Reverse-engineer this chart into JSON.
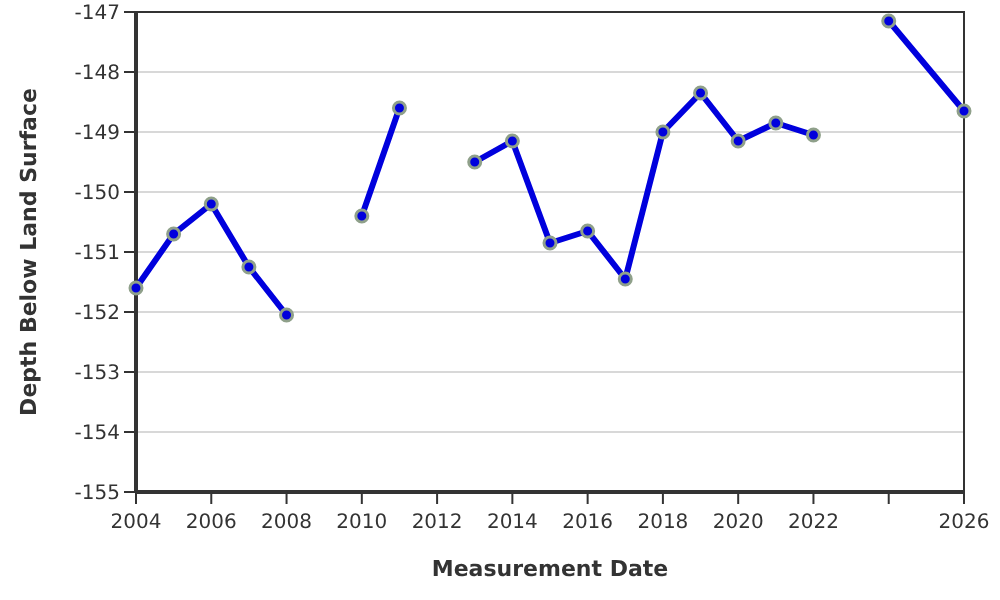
{
  "chart_data": {
    "type": "line",
    "xlabel": "Measurement Date",
    "ylabel": "Depth Below Land Surface",
    "x": [
      2004,
      2005,
      2006,
      2007,
      2008,
      2009,
      2010,
      2011,
      2012,
      2013,
      2014,
      2015,
      2016,
      2017,
      2018,
      2019,
      2020,
      2021,
      2022,
      2023,
      2024,
      2026
    ],
    "series": [
      {
        "color": "#0000dd",
        "values": [
          -151.6,
          -150.7,
          -150.2,
          -151.25,
          -152.05,
          null,
          -150.4,
          -148.6,
          null,
          -149.5,
          -149.15,
          -150.85,
          -150.65,
          -151.45,
          -149.0,
          -148.35,
          -149.15,
          -148.85,
          -149.05,
          null,
          -147.15,
          -148.65
        ]
      }
    ],
    "xlim": [
      2004,
      2026
    ],
    "xticks": [
      2004,
      2006,
      2008,
      2010,
      2012,
      2014,
      2016,
      2018,
      2020,
      2022,
      {
        "value": 2024,
        "label": null
      },
      2026
    ],
    "ylim": [
      -155,
      -147
    ],
    "yticks": [
      -155,
      -154,
      -153,
      -152,
      -151,
      -150,
      -149,
      -148,
      -147
    ],
    "grid": "y",
    "marker": "circle",
    "line_style": "solid"
  }
}
